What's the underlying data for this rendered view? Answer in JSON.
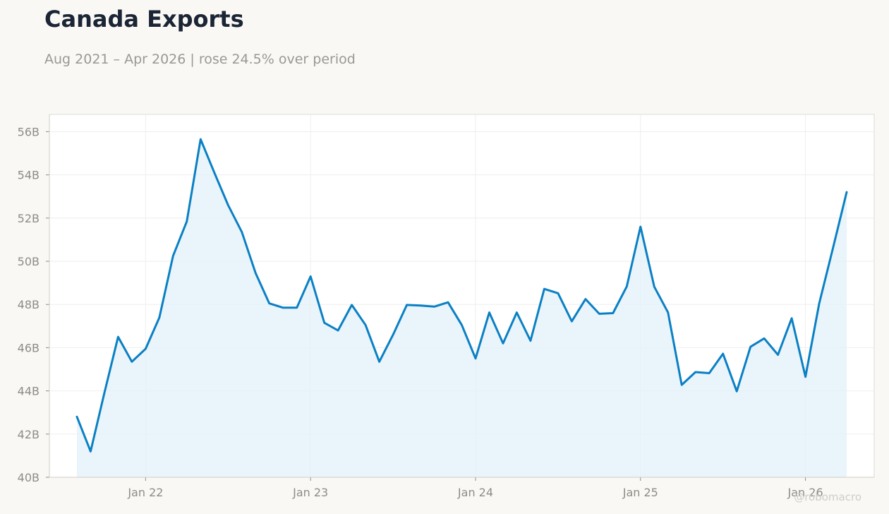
{
  "title": "Canada Exports",
  "subtitle": "Aug 2021 – Apr 2026 | rose 24.5% over period",
  "watermark": "@robomacro",
  "colors": {
    "line": "#0a80c4",
    "fill": "#e3f0fa",
    "grid": "#eeeeee",
    "background": "#f9f8f4",
    "plot_background": "#ffffff"
  },
  "chart_data": {
    "type": "area",
    "title": "Canada Exports",
    "subtitle": "Aug 2021 – Apr 2026 | rose 24.5% over period",
    "xlabel": "",
    "ylabel": "",
    "ylim": [
      40,
      56.8
    ],
    "y_unit": "B",
    "y_ticks": [
      40,
      42,
      44,
      46,
      48,
      50,
      52,
      54,
      56
    ],
    "y_tick_labels": [
      "40B",
      "42B",
      "44B",
      "46B",
      "48B",
      "50B",
      "52B",
      "54B",
      "56B"
    ],
    "x_range": [
      "2021-06",
      "2026-06"
    ],
    "x_ticks": [
      "2022-01",
      "2023-01",
      "2024-01",
      "2025-01",
      "2026-01"
    ],
    "x_tick_labels": [
      "Jan 22",
      "Jan 23",
      "Jan 24",
      "Jan 25",
      "Jan 26"
    ],
    "grid": true,
    "series": [
      {
        "x": [
          "2021-08",
          "2021-09",
          "2021-10",
          "2021-11",
          "2021-12",
          "2022-01",
          "2022-02",
          "2022-03",
          "2022-04",
          "2022-05",
          "2022-06",
          "2022-07",
          "2022-08",
          "2022-09",
          "2022-10",
          "2022-11",
          "2022-12",
          "2023-01",
          "2023-02",
          "2023-03",
          "2023-04",
          "2023-05",
          "2023-06",
          "2023-07",
          "2023-08",
          "2023-09",
          "2023-10",
          "2023-11",
          "2023-12",
          "2024-01",
          "2024-02",
          "2024-03",
          "2024-04",
          "2024-05",
          "2024-06",
          "2024-07",
          "2024-08",
          "2024-09",
          "2024-10",
          "2024-11",
          "2024-12",
          "2025-01",
          "2025-02",
          "2025-03",
          "2025-04",
          "2025-05",
          "2025-06",
          "2025-07",
          "2025-08",
          "2025-09",
          "2025-10",
          "2025-11",
          "2025-12",
          "2026-01",
          "2026-02",
          "2026-03",
          "2026-04"
        ],
        "values": [
          42.8,
          41.2,
          43.9,
          46.5,
          45.35,
          45.95,
          47.4,
          50.25,
          51.85,
          55.65,
          54.1,
          52.6,
          51.35,
          49.45,
          48.05,
          47.85,
          47.85,
          49.3,
          47.15,
          46.8,
          47.98,
          47.05,
          45.35,
          46.6,
          47.98,
          47.95,
          47.9,
          48.1,
          47.05,
          45.5,
          47.63,
          46.2,
          47.63,
          46.32,
          48.72,
          48.52,
          47.22,
          48.25,
          47.57,
          47.6,
          48.83,
          51.6,
          48.82,
          47.63,
          44.28,
          44.87,
          44.82,
          45.72,
          43.98,
          46.04,
          46.43,
          45.67,
          47.36,
          44.65,
          48.05,
          50.6,
          53.2
        ]
      }
    ]
  }
}
